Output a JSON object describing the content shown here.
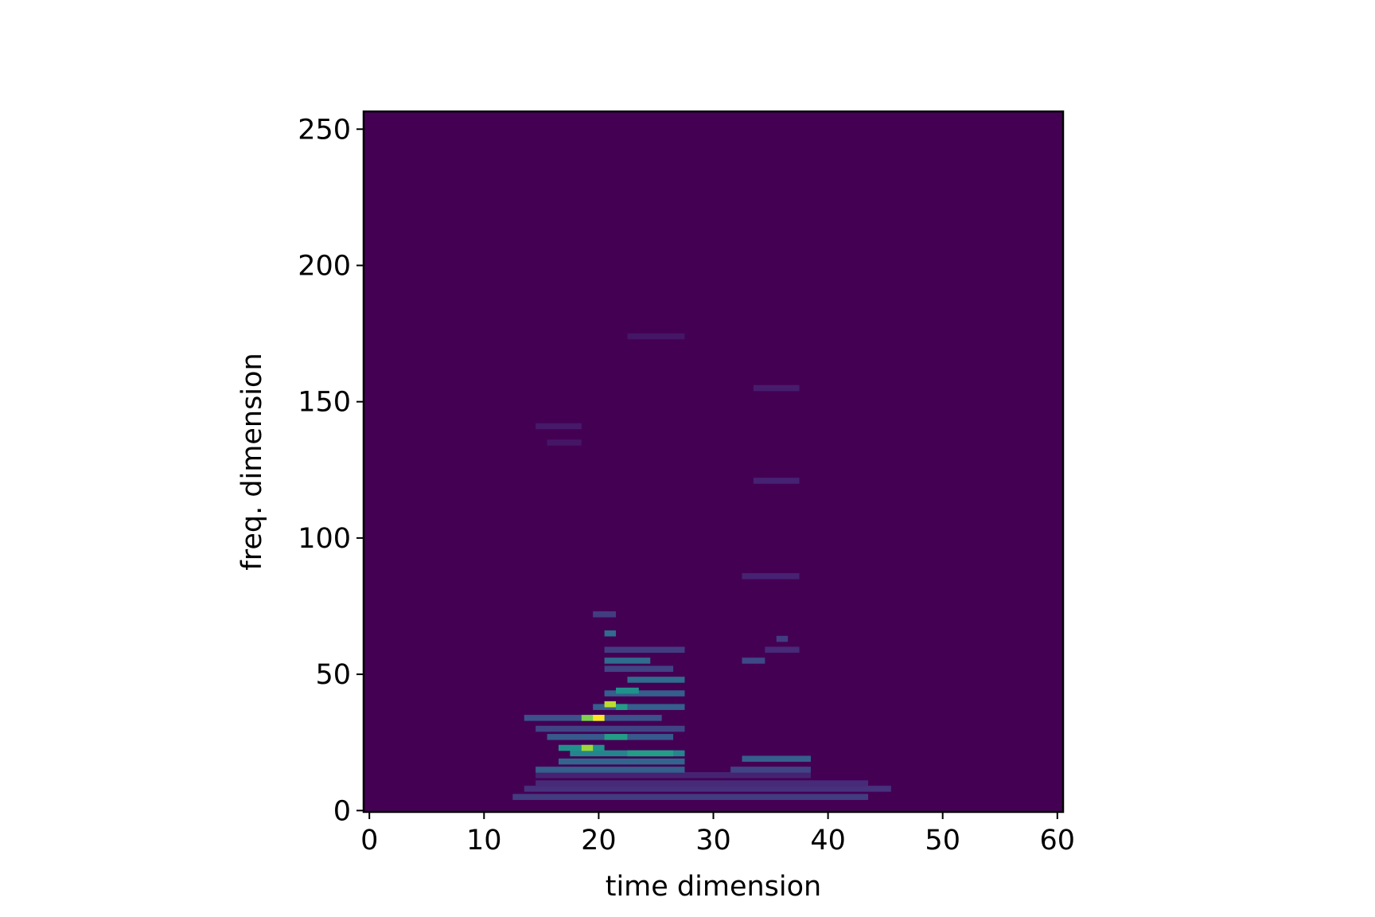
{
  "chart_data": {
    "type": "heatmap",
    "title": "",
    "xlabel": "time dimension",
    "ylabel": "freq. dimension",
    "xlim": [
      -0.5,
      60.5
    ],
    "ylim": [
      -0.5,
      256.5
    ],
    "x_ticks": [
      0,
      10,
      20,
      30,
      40,
      50,
      60
    ],
    "y_ticks": [
      0,
      50,
      100,
      150,
      200,
      250
    ],
    "colormap": "viridis",
    "background_color": "#440154",
    "value_range": [
      0,
      1
    ],
    "segments": [
      {
        "t0": 12.5,
        "t1": 43.5,
        "f": 5,
        "v": 0.18
      },
      {
        "t0": 13.5,
        "t1": 45.5,
        "f": 8,
        "v": 0.14
      },
      {
        "t0": 14.5,
        "t1": 43.5,
        "f": 10,
        "v": 0.12
      },
      {
        "t0": 14.5,
        "t1": 38.5,
        "f": 13,
        "v": 0.1
      },
      {
        "t0": 14.5,
        "t1": 27.5,
        "f": 15,
        "v": 0.3
      },
      {
        "t0": 31.5,
        "t1": 38.5,
        "f": 15,
        "v": 0.2
      },
      {
        "t0": 16.5,
        "t1": 27.5,
        "f": 18,
        "v": 0.32
      },
      {
        "t0": 32.5,
        "t1": 38.5,
        "f": 19,
        "v": 0.3
      },
      {
        "t0": 17.5,
        "t1": 27.5,
        "f": 21,
        "v": 0.45
      },
      {
        "t0": 22.5,
        "t1": 26.5,
        "f": 21,
        "v": 0.55
      },
      {
        "t0": 16.5,
        "t1": 20.5,
        "f": 23,
        "v": 0.5
      },
      {
        "t0": 18.5,
        "t1": 19.5,
        "f": 23,
        "v": 0.85
      },
      {
        "t0": 15.5,
        "t1": 26.5,
        "f": 27,
        "v": 0.28
      },
      {
        "t0": 20.5,
        "t1": 22.5,
        "f": 27,
        "v": 0.55
      },
      {
        "t0": 14.5,
        "t1": 27.5,
        "f": 30,
        "v": 0.2
      },
      {
        "t0": 13.5,
        "t1": 25.5,
        "f": 34,
        "v": 0.25
      },
      {
        "t0": 18.5,
        "t1": 20.5,
        "f": 34,
        "v": 0.8
      },
      {
        "t0": 19.5,
        "t1": 20.5,
        "f": 34,
        "v": 1.0
      },
      {
        "t0": 19.5,
        "t1": 27.5,
        "f": 38,
        "v": 0.3
      },
      {
        "t0": 20.5,
        "t1": 21.5,
        "f": 39,
        "v": 0.9
      },
      {
        "t0": 21.5,
        "t1": 22.5,
        "f": 38,
        "v": 0.55
      },
      {
        "t0": 20.5,
        "t1": 27.5,
        "f": 43,
        "v": 0.3
      },
      {
        "t0": 21.5,
        "t1": 23.5,
        "f": 44,
        "v": 0.5
      },
      {
        "t0": 22.5,
        "t1": 27.5,
        "f": 48,
        "v": 0.35
      },
      {
        "t0": 20.5,
        "t1": 26.5,
        "f": 52,
        "v": 0.2
      },
      {
        "t0": 20.5,
        "t1": 24.5,
        "f": 55,
        "v": 0.35
      },
      {
        "t0": 32.5,
        "t1": 34.5,
        "f": 55,
        "v": 0.22
      },
      {
        "t0": 20.5,
        "t1": 27.5,
        "f": 59,
        "v": 0.18
      },
      {
        "t0": 34.5,
        "t1": 37.5,
        "f": 59,
        "v": 0.12
      },
      {
        "t0": 35.5,
        "t1": 36.5,
        "f": 63,
        "v": 0.18
      },
      {
        "t0": 20.5,
        "t1": 21.5,
        "f": 65,
        "v": 0.35
      },
      {
        "t0": 19.5,
        "t1": 21.5,
        "f": 72,
        "v": 0.18
      },
      {
        "t0": 32.5,
        "t1": 37.5,
        "f": 86,
        "v": 0.1
      },
      {
        "t0": 33.5,
        "t1": 37.5,
        "f": 121,
        "v": 0.1
      },
      {
        "t0": 33.5,
        "t1": 37.5,
        "f": 155,
        "v": 0.08
      },
      {
        "t0": 22.5,
        "t1": 27.5,
        "f": 174,
        "v": 0.06
      },
      {
        "t0": 14.5,
        "t1": 18.5,
        "f": 141,
        "v": 0.07
      },
      {
        "t0": 15.5,
        "t1": 18.5,
        "f": 135,
        "v": 0.06
      }
    ]
  }
}
